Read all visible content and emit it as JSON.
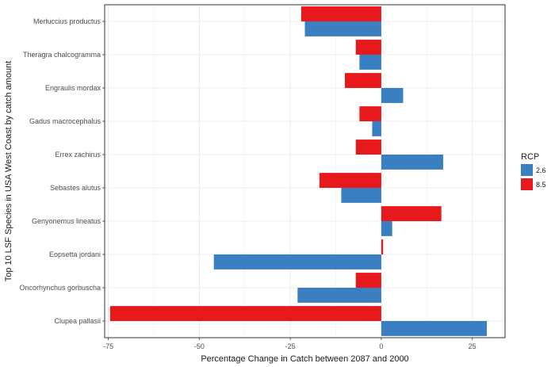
{
  "chart_data": {
    "type": "bar",
    "orientation": "horizontal",
    "xlabel": "Percentage Change in Catch between 2087 and 2000",
    "ylabel": "Top 10 LSF Species in USA West Coast by catch amount",
    "xlim": [
      -76,
      34
    ],
    "xticks": [
      -75,
      -50,
      -25,
      0,
      25
    ],
    "grid": true,
    "legend": {
      "title": "RCP",
      "position": "right"
    },
    "categories": [
      "Merluccius productus",
      "Theragra chalcogramma",
      "Engraulis mordax",
      "Gadus macrocephalus",
      "Errex zachirus",
      "Sebastes alutus",
      "Genyonemus lineatus",
      "Eopsetta jordani",
      "Oncorhynchus gorbuscha",
      "Clupea pallasii"
    ],
    "series": [
      {
        "name": "2.6",
        "color": "#3a7fc1",
        "values": [
          -21,
          -6,
          6,
          -2.5,
          17,
          -11,
          3,
          -46,
          -23,
          29
        ]
      },
      {
        "name": "8.5",
        "color": "#e8191c",
        "values": [
          -22,
          -7,
          -10,
          -6,
          -7,
          -17,
          16.5,
          0.5,
          -7,
          -74.5
        ]
      }
    ]
  }
}
